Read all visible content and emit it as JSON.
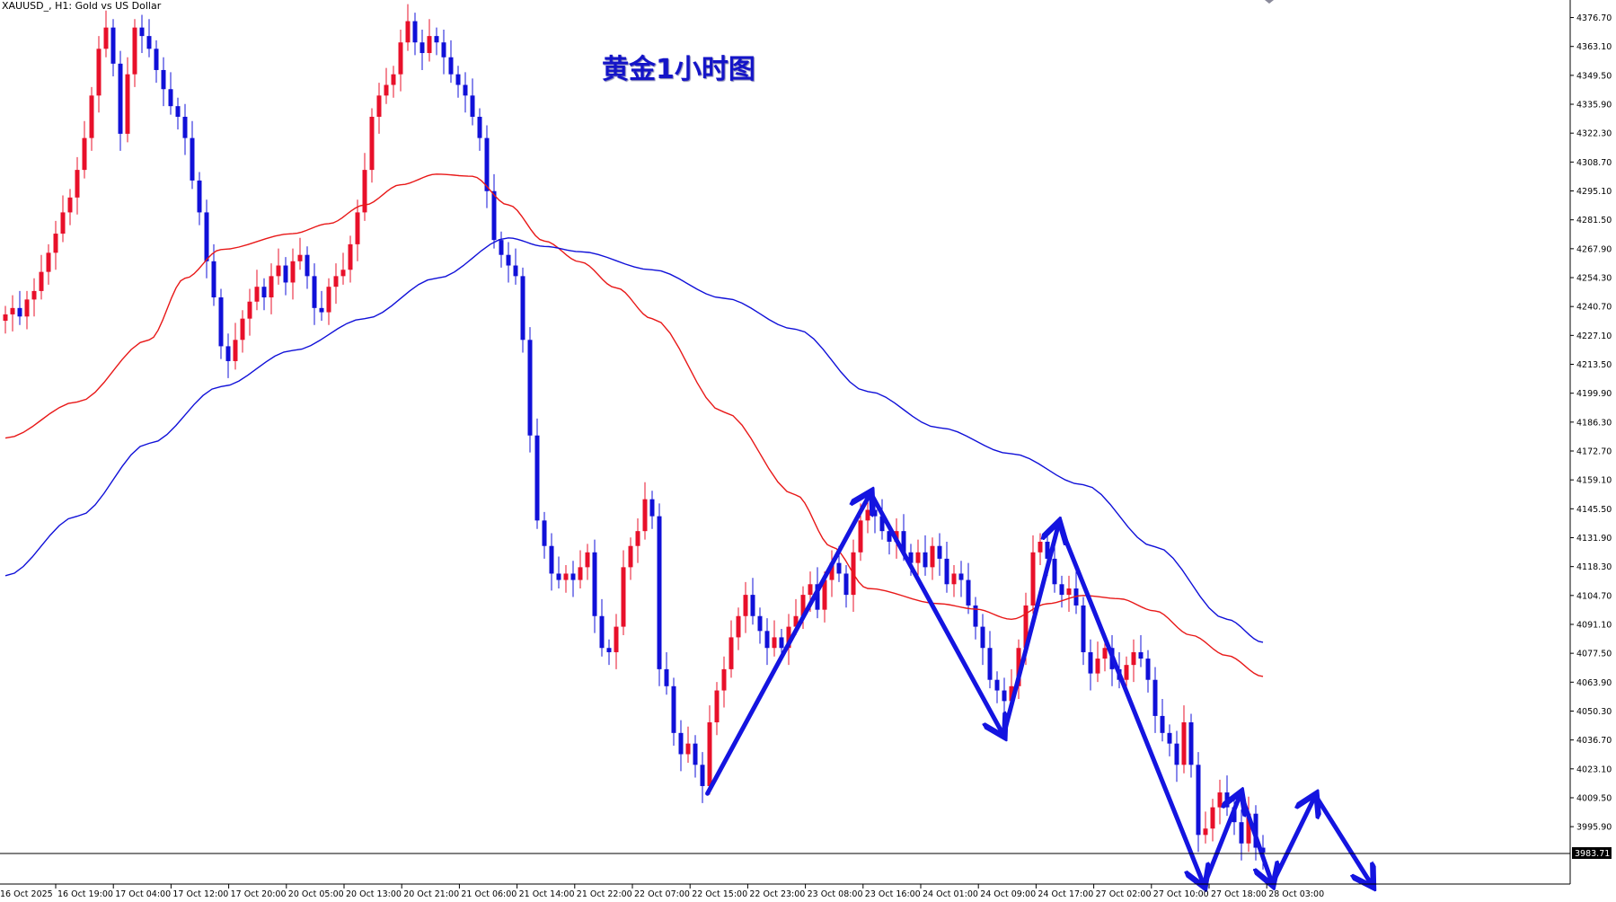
{
  "header": {
    "symbol_label": "XAUUSD_, H1:  Gold vs US Dollar",
    "title": "黄金1小时图"
  },
  "chart_data": {
    "type": "candlestick",
    "title": "黄金1小时图",
    "grid": false,
    "colors": {
      "bull": "#e8102a",
      "bear": "#1010d8",
      "ma_fast": "#e81818",
      "ma_slow": "#1010d8",
      "arrows": "#1414e0"
    },
    "y_ticks": [
      "4376.70",
      "4363.10",
      "4349.50",
      "4335.90",
      "4322.30",
      "4308.70",
      "4295.10",
      "4281.50",
      "4267.90",
      "4254.30",
      "4240.70",
      "4227.10",
      "4213.50",
      "4199.90",
      "4186.30",
      "4172.70",
      "4159.10",
      "4145.50",
      "4131.90",
      "4118.30",
      "4104.70",
      "4091.10",
      "4077.50",
      "4063.90",
      "4050.30",
      "4036.70",
      "4023.10",
      "4009.50",
      "3995.90"
    ],
    "current_price": "3983.71",
    "x_first_label": "16 Oct 2025",
    "x_labels": [
      "16 Oct 19:00",
      "17 Oct 04:00",
      "17 Oct 12:00",
      "17 Oct 20:00",
      "20 Oct 05:00",
      "20 Oct 13:00",
      "20 Oct 21:00",
      "21 Oct 06:00",
      "21 Oct 14:00",
      "21 Oct 22:00",
      "22 Oct 07:00",
      "22 Oct 15:00",
      "22 Oct 23:00",
      "23 Oct 08:00",
      "23 Oct 16:00",
      "24 Oct 01:00",
      "24 Oct 09:00",
      "24 Oct 17:00",
      "27 Oct 02:00",
      "27 Oct 10:00",
      "27 Oct 18:00",
      "28 Oct 03:00"
    ],
    "closes": [
      4237,
      4240,
      4236,
      4244,
      4248,
      4257,
      4266,
      4275,
      4285,
      4292,
      4305,
      4320,
      4340,
      4362,
      4372,
      4355,
      4322,
      4350,
      4372,
      4368,
      4362,
      4352,
      4343,
      4335,
      4330,
      4320,
      4300,
      4285,
      4262,
      4245,
      4222,
      4215,
      4225,
      4235,
      4243,
      4250,
      4245,
      4255,
      4260,
      4252,
      4262,
      4265,
      4255,
      4240,
      4238,
      4250,
      4255,
      4258,
      4270,
      4285,
      4305,
      4330,
      4340,
      4345,
      4350,
      4365,
      4375,
      4365,
      4360,
      4368,
      4365,
      4358,
      4350,
      4345,
      4340,
      4330,
      4320,
      4295,
      4272,
      4265,
      4260,
      4255,
      4225,
      4180,
      4140,
      4128,
      4115,
      4112,
      4115,
      4112,
      4118,
      4125,
      4095,
      4080,
      4078,
      4090,
      4118,
      4128,
      4135,
      4150,
      4142,
      4070,
      4062,
      4040,
      4030,
      4035,
      4025,
      4015,
      4045,
      4060,
      4070,
      4085,
      4095,
      4105,
      4095,
      4088,
      4080,
      4085,
      4080,
      4090,
      4095,
      4105,
      4110,
      4098,
      4112,
      4120,
      4115,
      4105,
      4125,
      4140,
      4145,
      4142,
      4135,
      4130,
      4135,
      4125,
      4120,
      4125,
      4118,
      4128,
      4122,
      4110,
      4115,
      4112,
      4100,
      4090,
      4080,
      4065,
      4060,
      4055,
      4062,
      4080,
      4100,
      4125,
      4130,
      4122,
      4110,
      4105,
      4108,
      4100,
      4078,
      4068,
      4075,
      4080,
      4070,
      4065,
      4072,
      4078,
      4075,
      4065,
      4048,
      4040,
      4035,
      4025,
      4045,
      4025,
      3992,
      3995,
      4005,
      4012,
      4005,
      3998,
      3988,
      4002,
      3986,
      3983.71
    ],
    "ma_fast": [
      [
        0,
        4178.8
      ],
      [
        10,
        4195.8
      ],
      [
        20,
        4225
      ],
      [
        25,
        4254
      ],
      [
        30,
        4267.5
      ],
      [
        40,
        4275
      ],
      [
        45,
        4279.7
      ],
      [
        50,
        4288.5
      ],
      [
        55,
        4298
      ],
      [
        60,
        4303
      ],
      [
        65,
        4302
      ],
      [
        70,
        4288.5
      ],
      [
        75,
        4271.5
      ],
      [
        80,
        4261.7
      ],
      [
        85,
        4249.5
      ],
      [
        90,
        4235
      ],
      [
        100,
        4191
      ],
      [
        110,
        4152
      ],
      [
        115,
        4127.6
      ],
      [
        120,
        4108
      ],
      [
        130,
        4100.8
      ],
      [
        135,
        4098.3
      ],
      [
        140,
        4093.5
      ],
      [
        145,
        4100.8
      ],
      [
        150,
        4104.7
      ],
      [
        155,
        4103.2
      ],
      [
        160,
        4097.4
      ],
      [
        165,
        4086
      ],
      [
        170,
        4076.4
      ],
      [
        175,
        4066.6
      ]
    ],
    "ma_slow": [
      [
        0,
        4114
      ],
      [
        10,
        4142
      ],
      [
        20,
        4176.3
      ],
      [
        30,
        4203
      ],
      [
        40,
        4220
      ],
      [
        50,
        4235
      ],
      [
        60,
        4254
      ],
      [
        70,
        4273
      ],
      [
        75,
        4269
      ],
      [
        80,
        4266.5
      ],
      [
        90,
        4258
      ],
      [
        100,
        4244.6
      ],
      [
        110,
        4230
      ],
      [
        120,
        4200.7
      ],
      [
        130,
        4183.6
      ],
      [
        140,
        4171.4
      ],
      [
        150,
        4156.8
      ],
      [
        160,
        4127.6
      ],
      [
        170,
        4093.5
      ],
      [
        175,
        4082.7
      ]
    ],
    "arrows": [
      [
        [
          97.7,
          4011.5
        ],
        [
          120.4,
          4153
        ]
      ],
      [
        [
          120.4,
          4153
        ],
        [
          138.9,
          4038.9
        ]
      ],
      [
        [
          138.9,
          4038.9
        ],
        [
          146.6,
          4138.8
        ]
      ],
      [
        [
          146.6,
          4138.8
        ],
        [
          166.8,
          3968.2
        ]
      ],
      [
        [
          166.8,
          3968.2
        ],
        [
          171.9,
          4011.5
        ]
      ],
      [
        [
          171.9,
          4011.5
        ],
        [
          176.3,
          3969
        ]
      ],
      [
        [
          176.3,
          3969
        ],
        [
          182.3,
          4010.6
        ]
      ],
      [
        [
          182.3,
          4010.6
        ],
        [
          190.2,
          3968.2
        ]
      ]
    ]
  }
}
